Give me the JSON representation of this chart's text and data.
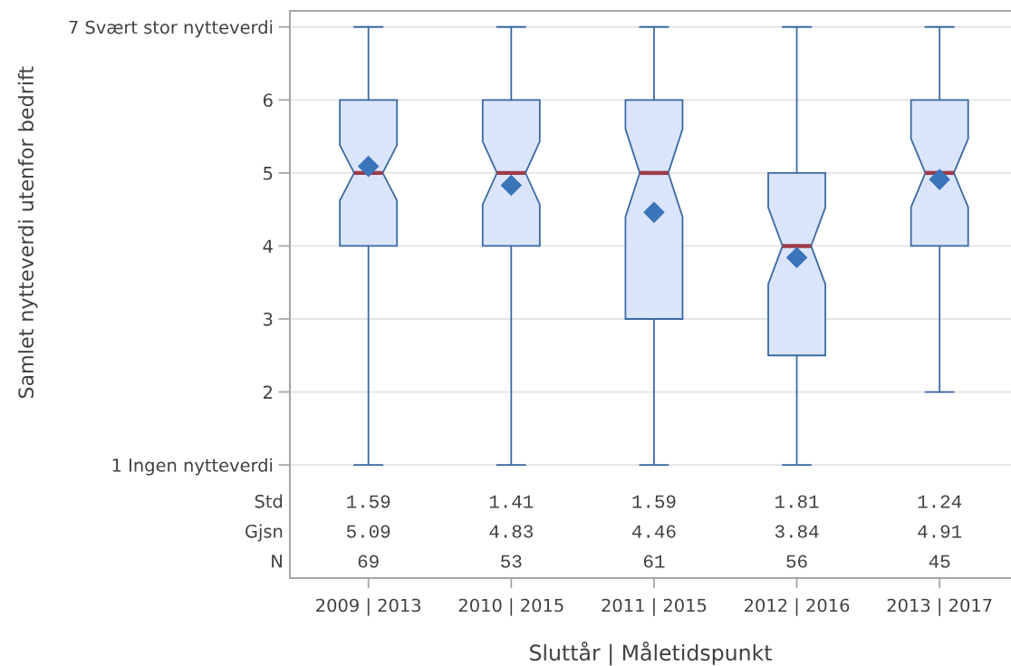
{
  "chart_data": {
    "type": "box",
    "xlabel": "Sluttår | Måletidspunkt",
    "ylabel": "Samlet nytteverdi utenfor bedrift",
    "categories": [
      "2009 | 2013",
      "2010 | 2015",
      "2011 | 2015",
      "2012 | 2016",
      "2013 | 2017"
    ],
    "ylim": [
      -0.55,
      7.22
    ],
    "yticks": [
      {
        "value": 1,
        "label": "1 Ingen nytteverdi"
      },
      2,
      3,
      4,
      5,
      6,
      {
        "value": 7,
        "label": "7 Svært stor nytteverdi"
      }
    ],
    "grid": "y",
    "color": "#dae5fb",
    "marker": "diamond",
    "boxes": [
      {
        "low": 1,
        "q1": 4,
        "median": 5,
        "q3": 6,
        "high": 7,
        "mean": 5.09
      },
      {
        "low": 1,
        "q1": 4,
        "median": 5,
        "q3": 6,
        "high": 7,
        "mean": 4.83
      },
      {
        "low": 1,
        "q1": 3,
        "median": 5,
        "q3": 6,
        "high": 7,
        "mean": 4.46
      },
      {
        "low": 1,
        "q1": 2.5,
        "median": 4,
        "q3": 5,
        "high": 7,
        "mean": 3.84
      },
      {
        "low": 2,
        "q1": 4,
        "median": 5,
        "q3": 6,
        "high": 7,
        "mean": 4.91
      }
    ],
    "annotations": [
      "Std",
      "1.59",
      "1.41",
      "1.59",
      "1.81",
      "1.24",
      "Gjsn",
      "5.09",
      "4.83",
      "4.46",
      "3.84",
      "4.91",
      "N",
      "69",
      "53",
      "61",
      "56",
      "45"
    ]
  }
}
